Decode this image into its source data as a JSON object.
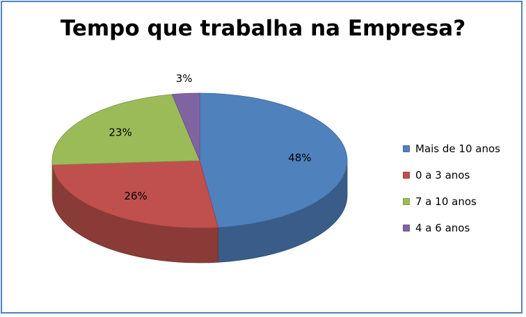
{
  "chart_data": {
    "type": "pie",
    "title": "Tempo que trabalha na Empresa?",
    "categories": [
      "Mais de 10 anos",
      "0 a 3 anos",
      "7 a 10 anos",
      "4 a 6 anos"
    ],
    "values": [
      48,
      26,
      23,
      3
    ],
    "value_labels": [
      "48%",
      "26%",
      "23%",
      "3%"
    ],
    "colors": [
      "#4f81bd",
      "#c0504d",
      "#9bbb59",
      "#8064a2"
    ],
    "legend_position": "right",
    "style": "3d"
  }
}
